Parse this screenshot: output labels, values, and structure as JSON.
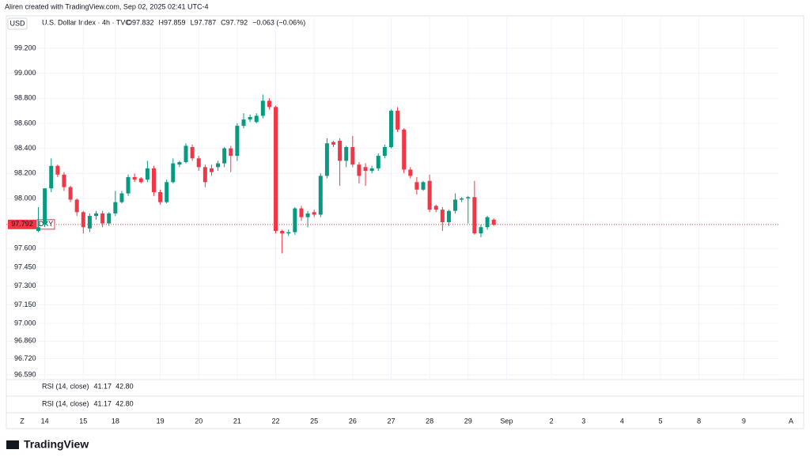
{
  "header": "Aliren created with TradingView.com, Sep 02, 2025 02:41 UTC-4",
  "currency": "USD",
  "legend": {
    "symbol": "U.S. Dollar Index · 4h · TVC",
    "ohlc": [
      "O97.832",
      "H97.859",
      "L97.787",
      "C97.792",
      "−0.063 (−0.06%)"
    ]
  },
  "last_price": {
    "value": 97.792,
    "label": "97.792",
    "ticker": "DXY"
  },
  "indicators": [
    {
      "name": "RSI (14, close)",
      "values": [
        "41.17",
        "42.80"
      ]
    },
    {
      "name": "RSI (14, close)",
      "values": [
        "41.17",
        "42.80"
      ]
    }
  ],
  "toolbar": {
    "left": "Z",
    "right": "A"
  },
  "logo": "TradingView",
  "chart_data": {
    "type": "candlestick",
    "up_color": "#089981",
    "down_color": "#f23645",
    "grid": true,
    "xlim": [
      -5,
      115.5
    ],
    "xticks": [
      {
        "value": 1,
        "label": "14"
      },
      {
        "value": 7,
        "label": "15"
      },
      {
        "value": 12,
        "label": "18"
      },
      {
        "value": 19,
        "label": "19"
      },
      {
        "value": 25,
        "label": "20"
      },
      {
        "value": 31,
        "label": "21"
      },
      {
        "value": 37,
        "label": "22"
      },
      {
        "value": 43,
        "label": "25"
      },
      {
        "value": 49,
        "label": "26"
      },
      {
        "value": 55,
        "label": "27"
      },
      {
        "value": 61,
        "label": "28"
      },
      {
        "value": 67,
        "label": "29"
      },
      {
        "value": 73,
        "label": "Sep"
      },
      {
        "value": 80,
        "label": "2"
      },
      {
        "value": 85,
        "label": "3"
      },
      {
        "value": 91,
        "label": "4"
      },
      {
        "value": 97,
        "label": "5"
      },
      {
        "value": 103,
        "label": "8"
      },
      {
        "value": 110,
        "label": "9"
      }
    ],
    "ylim": [
      96.54,
      99.446
    ],
    "yticks": [
      {
        "value": 99.2,
        "label": "99.200"
      },
      {
        "value": 99.0,
        "label": "99.000"
      },
      {
        "value": 98.8,
        "label": "98.800"
      },
      {
        "value": 98.6,
        "label": "98.600"
      },
      {
        "value": 98.4,
        "label": "98.400"
      },
      {
        "value": 98.2,
        "label": "98.200"
      },
      {
        "value": 98.0,
        "label": "98.000"
      },
      {
        "value": 97.6,
        "label": "97.600"
      },
      {
        "value": 97.45,
        "label": "97.450"
      },
      {
        "value": 97.3,
        "label": "97.300"
      },
      {
        "value": 97.15,
        "label": "97.150"
      },
      {
        "value": 97.0,
        "label": "97.000"
      },
      {
        "value": 96.86,
        "label": "96.860"
      },
      {
        "value": 96.72,
        "label": "96.720"
      },
      {
        "value": 96.59,
        "label": "96.590"
      }
    ],
    "open": [
      97.74,
      97.79,
      98.08,
      98.26,
      98.19,
      98.09,
      97.99,
      97.89,
      97.76,
      97.86,
      97.88,
      97.8,
      97.88,
      97.97,
      98.04,
      98.17,
      98.16,
      98.15,
      98.24,
      98.05,
      97.97,
      98.13,
      98.27,
      98.29,
      98.41,
      98.32,
      98.25,
      98.24,
      98.25,
      98.28,
      98.4,
      98.34,
      98.58,
      98.63,
      98.61,
      98.66,
      98.78,
      98.73,
      97.74,
      97.72,
      97.73,
      97.92,
      97.85,
      97.89,
      97.87,
      98.18,
      98.45,
      98.46,
      98.3,
      98.41,
      98.27,
      98.25,
      98.22,
      98.24,
      98.34,
      98.41,
      98.7,
      98.55,
      98.23,
      98.13,
      98.07,
      98.14,
      97.94,
      97.91,
      97.81,
      97.9,
      97.99,
      98.0,
      98.01,
      97.72,
      97.77,
      97.83
    ],
    "high": [
      97.93,
      98.08,
      98.32,
      98.27,
      98.21,
      98.1,
      98.0,
      97.9,
      97.88,
      97.9,
      97.9,
      97.89,
      98.06,
      98.06,
      98.19,
      98.2,
      98.17,
      98.3,
      98.26,
      98.07,
      98.15,
      98.32,
      98.3,
      98.44,
      98.43,
      98.34,
      98.27,
      98.27,
      98.3,
      98.41,
      98.42,
      98.6,
      98.68,
      98.67,
      98.68,
      98.83,
      98.8,
      98.74,
      97.75,
      97.75,
      97.93,
      97.94,
      97.9,
      97.91,
      98.2,
      98.48,
      98.46,
      98.48,
      98.42,
      98.5,
      98.29,
      98.28,
      98.26,
      98.36,
      98.43,
      98.71,
      98.73,
      98.56,
      98.25,
      98.17,
      98.14,
      98.19,
      97.95,
      97.93,
      97.91,
      98.04,
      98.01,
      98.02,
      98.14,
      97.79,
      97.86,
      97.84
    ],
    "low": [
      97.73,
      97.77,
      98.05,
      98.17,
      98.06,
      97.97,
      97.86,
      97.72,
      97.73,
      97.83,
      97.77,
      97.78,
      97.86,
      97.96,
      98.02,
      98.13,
      98.12,
      98.13,
      98.02,
      97.95,
      97.96,
      98.12,
      98.25,
      98.28,
      98.3,
      98.22,
      98.09,
      98.18,
      98.22,
      98.25,
      98.21,
      98.3,
      98.56,
      98.61,
      98.6,
      98.64,
      98.71,
      97.72,
      97.56,
      97.7,
      97.71,
      97.82,
      97.77,
      97.85,
      97.85,
      98.16,
      98.41,
      98.1,
      98.25,
      98.25,
      98.12,
      98.1,
      98.2,
      98.22,
      98.32,
      98.4,
      98.53,
      98.2,
      98.16,
      98.03,
      98.06,
      97.89,
      97.89,
      97.74,
      97.78,
      97.88,
      97.97,
      97.8,
      97.71,
      97.69,
      97.75,
      97.78
    ],
    "close": [
      97.77,
      98.08,
      98.26,
      98.19,
      98.09,
      97.99,
      97.89,
      97.77,
      97.86,
      97.88,
      97.8,
      97.88,
      97.97,
      98.04,
      98.17,
      98.15,
      98.13,
      98.24,
      98.05,
      97.97,
      98.13,
      98.28,
      98.29,
      98.42,
      98.32,
      98.25,
      98.13,
      98.21,
      98.28,
      98.4,
      98.34,
      98.58,
      98.63,
      98.65,
      98.66,
      98.78,
      98.73,
      97.74,
      97.72,
      97.73,
      97.92,
      97.85,
      97.88,
      97.87,
      98.18,
      98.44,
      98.43,
      98.3,
      98.41,
      98.27,
      98.18,
      98.22,
      98.24,
      98.34,
      98.41,
      98.7,
      98.55,
      98.23,
      98.18,
      98.07,
      98.13,
      97.91,
      97.91,
      97.81,
      97.9,
      97.99,
      98.0,
      98.01,
      97.72,
      97.77,
      97.85,
      97.79
    ]
  }
}
